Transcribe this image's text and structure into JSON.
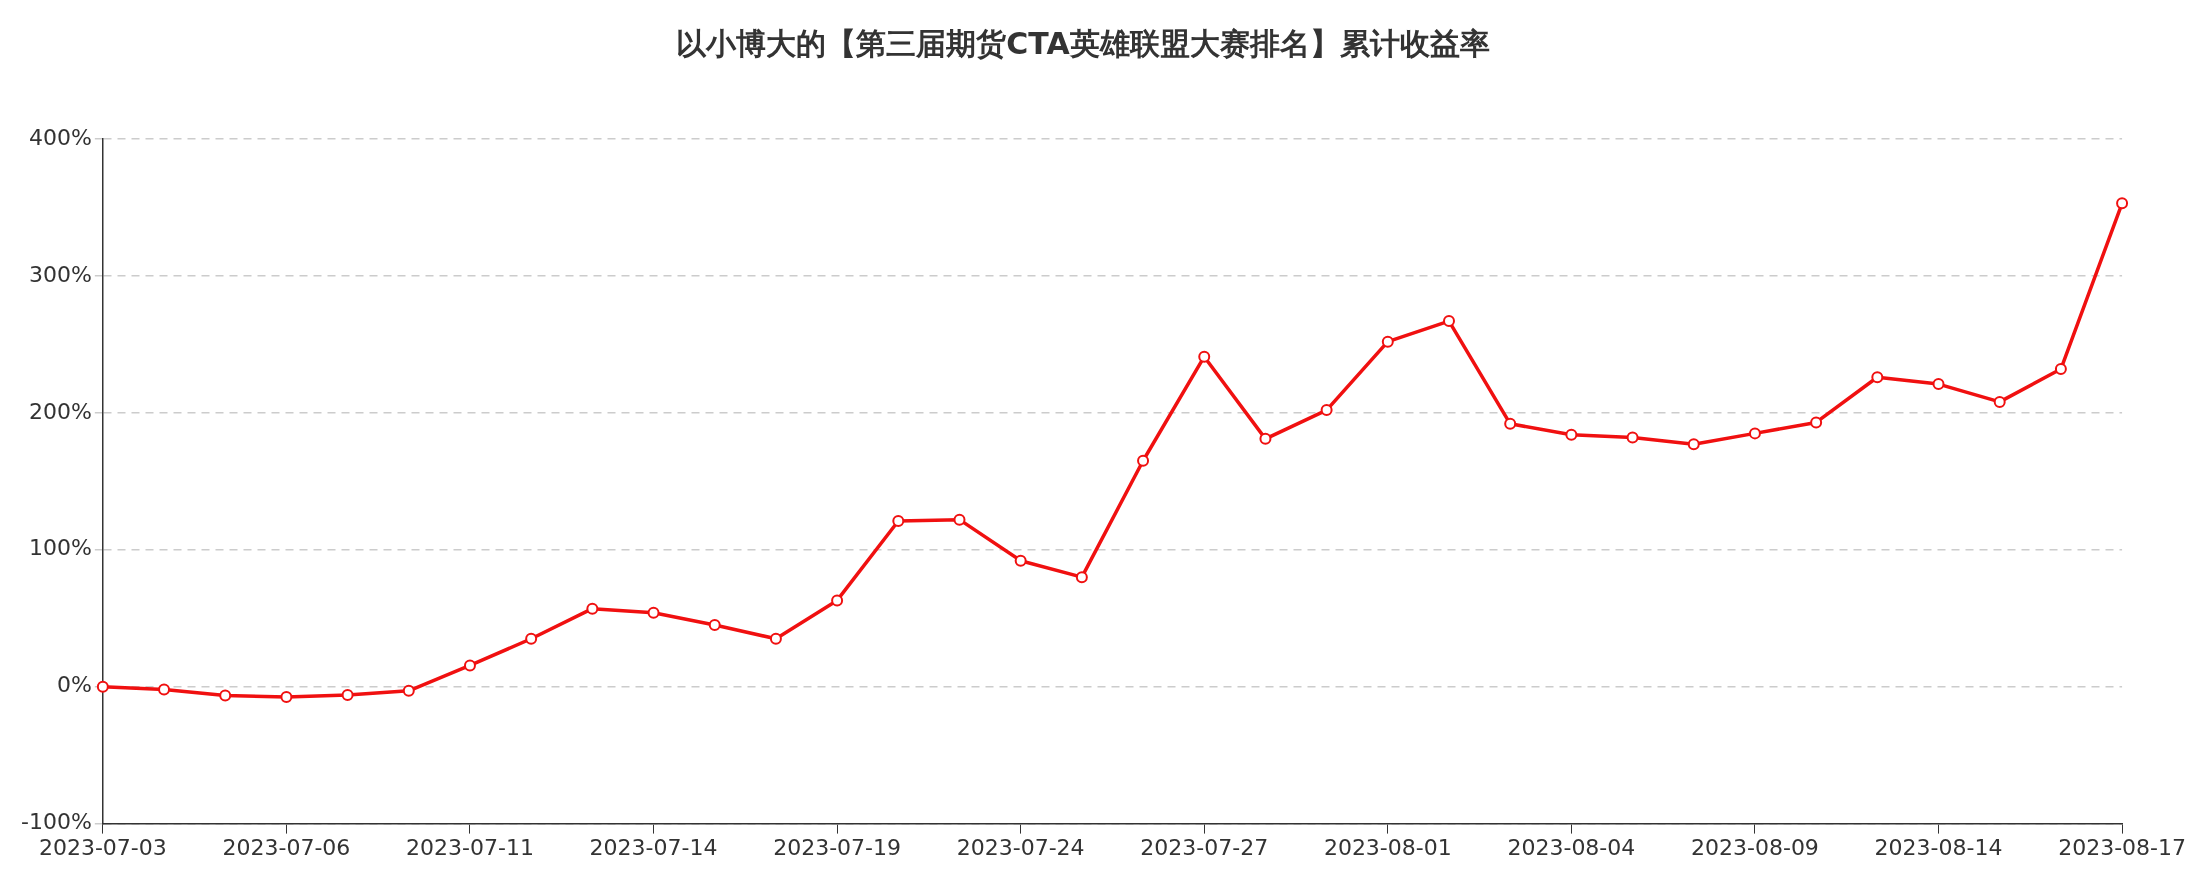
{
  "chart_data": {
    "type": "line",
    "title": "以小博大的【第三届期货CTA英雄联盟大赛排名】累计收益率",
    "categories": [
      "2023-07-03",
      null,
      null,
      "2023-07-06",
      null,
      null,
      "2023-07-11",
      null,
      null,
      "2023-07-14",
      null,
      null,
      "2023-07-19",
      null,
      null,
      "2023-07-24",
      null,
      null,
      "2023-07-27",
      null,
      null,
      "2023-08-01",
      null,
      null,
      "2023-08-04",
      null,
      null,
      "2023-08-09",
      null,
      null,
      "2023-08-14",
      null,
      null,
      "2023-08-17"
    ],
    "series": [
      {
        "color": "#f01010",
        "values": [
          0,
          -2,
          -6.5,
          -7.5,
          -6,
          -3,
          15.5,
          35,
          57,
          54,
          45,
          35,
          63,
          121,
          122,
          92,
          80,
          165,
          241,
          181,
          202,
          252,
          267,
          192,
          184,
          182,
          177,
          185,
          193,
          226,
          221,
          208,
          232,
          353
        ]
      }
    ],
    "ylim": [
      -100,
      400
    ],
    "yticks": [
      {
        "value": -100,
        "label": "-100%"
      },
      {
        "value": 0,
        "label": "0%"
      },
      {
        "value": 100,
        "label": "100%"
      },
      {
        "value": 200,
        "label": "200%"
      },
      {
        "value": 300,
        "label": "300%"
      },
      {
        "value": 400,
        "label": "400%"
      }
    ],
    "grid": "y",
    "legend": false,
    "marker": "circle",
    "line_style": "solid"
  }
}
